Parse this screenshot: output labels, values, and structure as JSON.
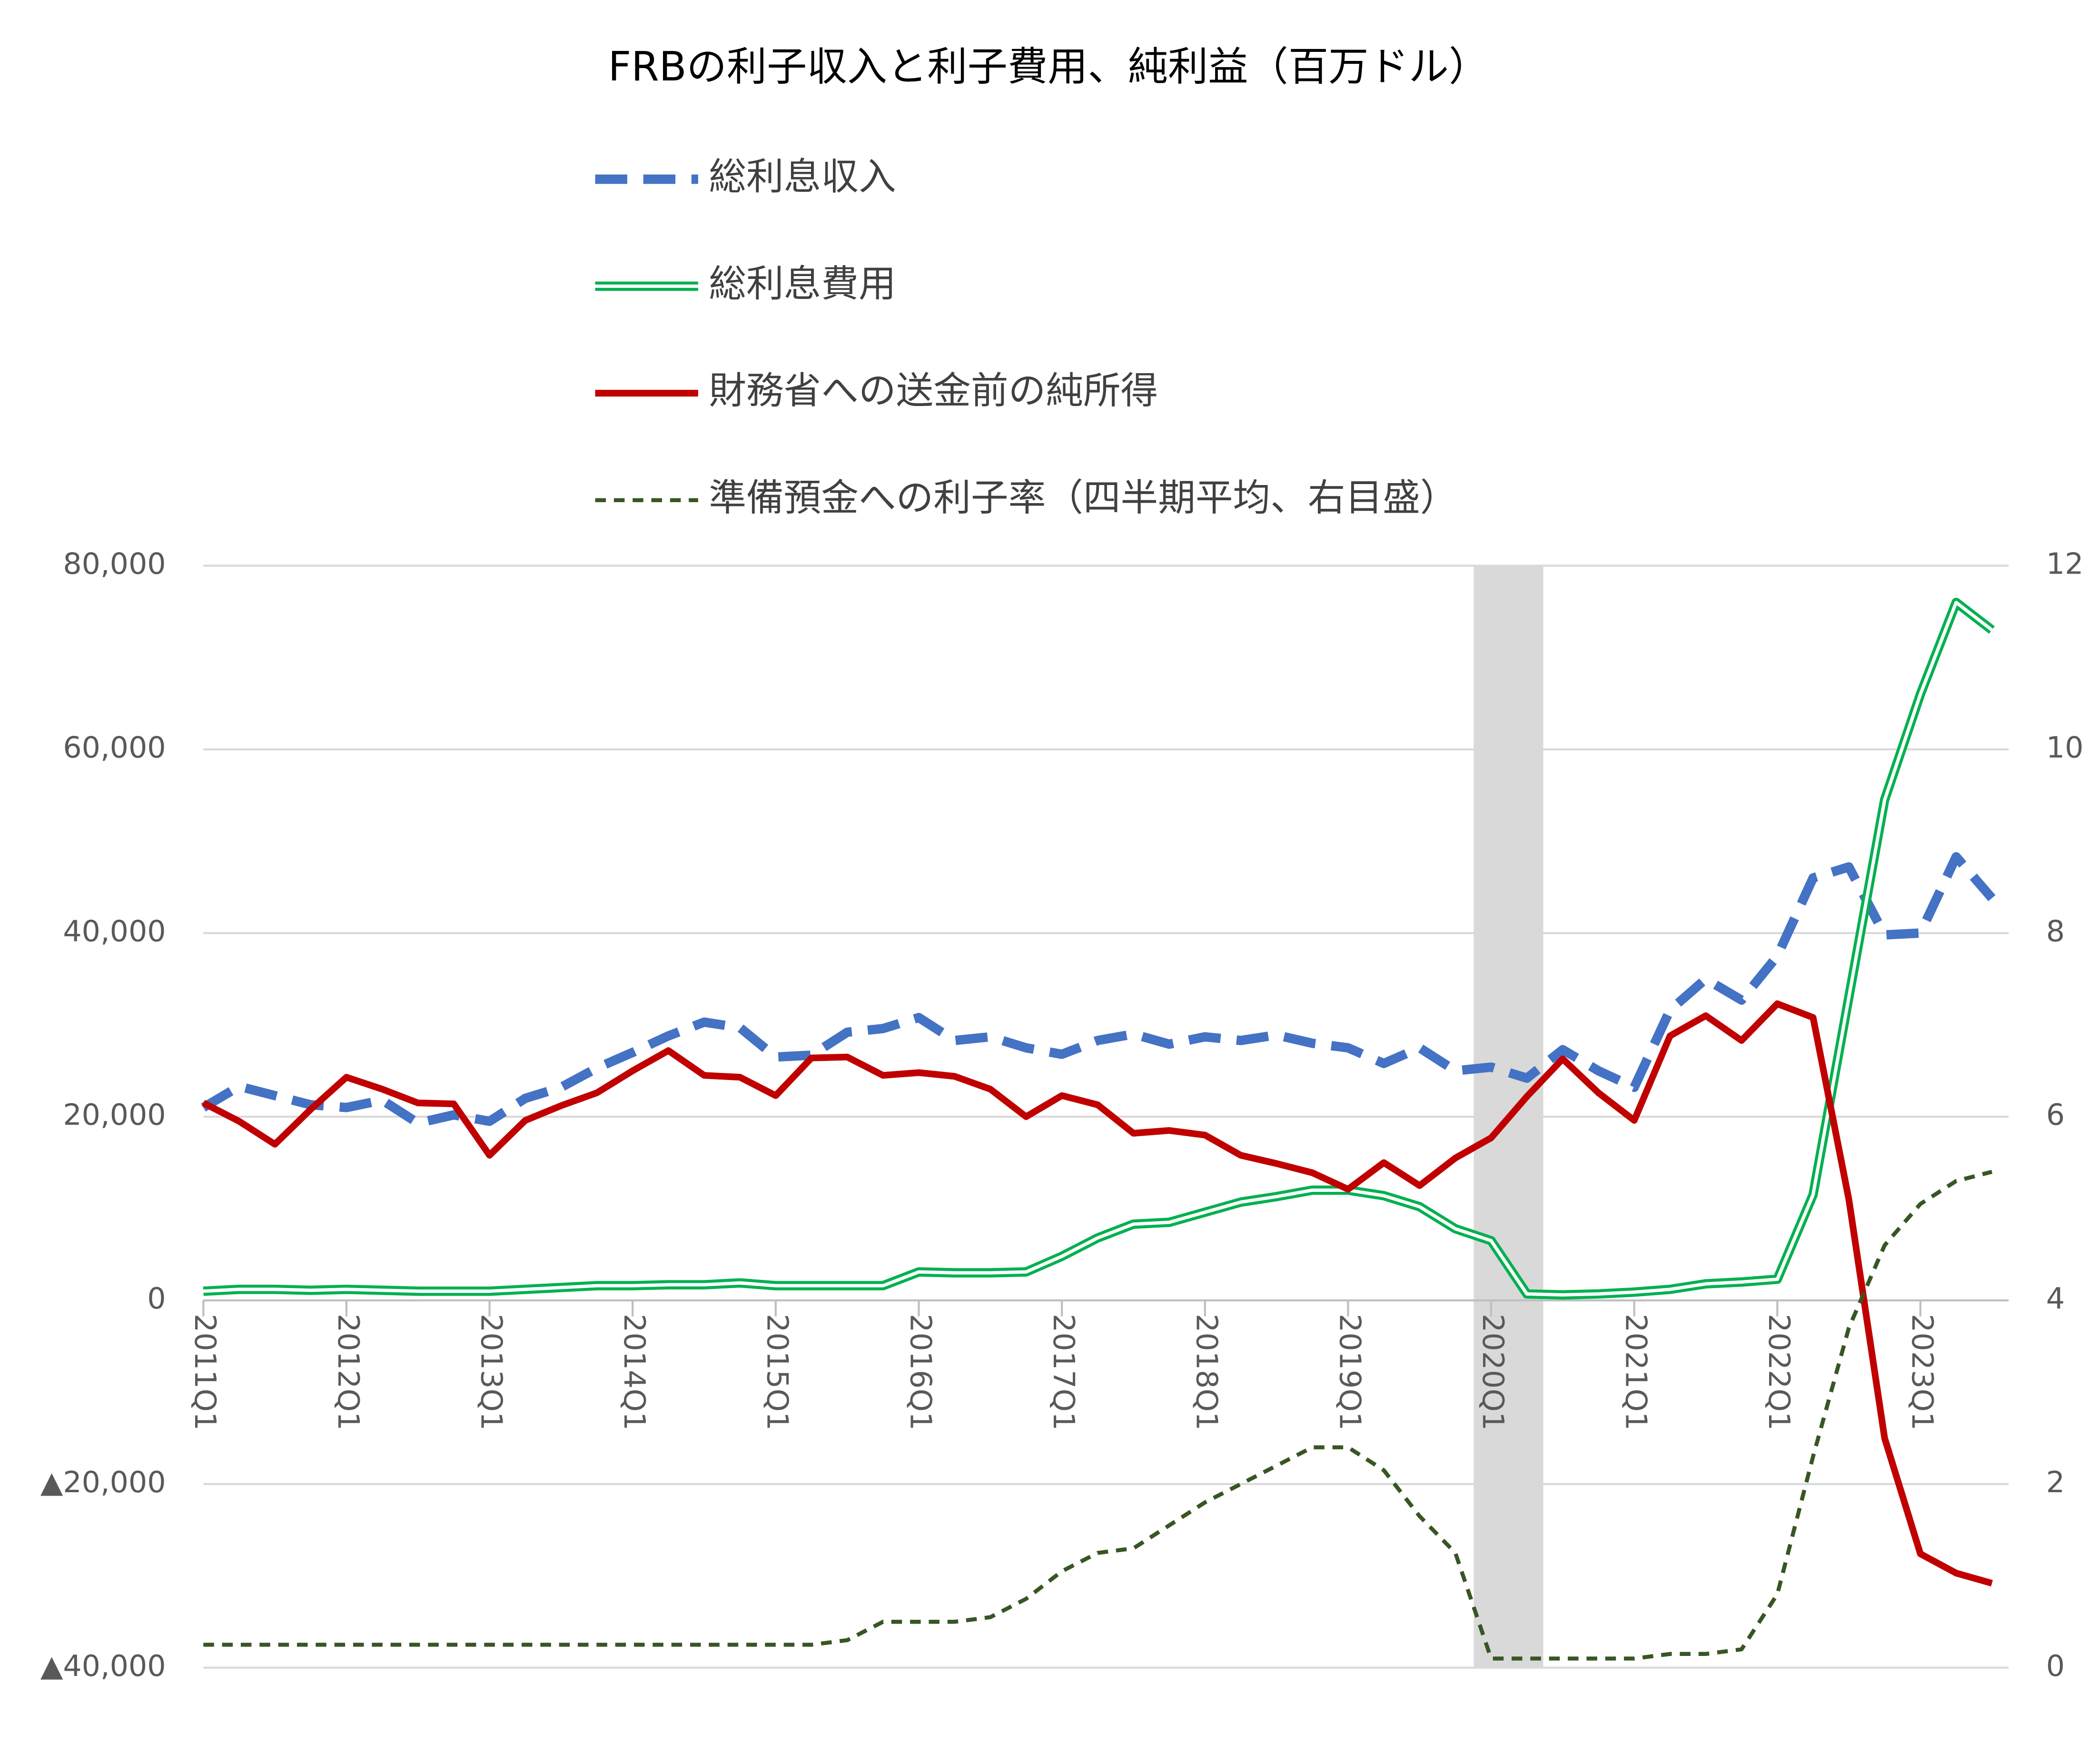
{
  "chart_data": {
    "type": "line",
    "title": "FRBの利子収入と利子費用、純利益（百万ドル）",
    "legend": "top",
    "grid": true,
    "categories": [
      "2011Q1",
      null,
      null,
      null,
      "2012Q1",
      null,
      null,
      null,
      "2013Q1",
      null,
      null,
      null,
      "2014Q1",
      null,
      null,
      null,
      "2015Q1",
      null,
      null,
      null,
      "2016Q1",
      null,
      null,
      null,
      "2017Q1",
      null,
      null,
      null,
      "2018Q1",
      null,
      null,
      null,
      "2019Q1",
      null,
      null,
      null,
      "2020Q1",
      null,
      null,
      null,
      "2021Q1",
      null,
      null,
      null,
      "2022Q1",
      null,
      null,
      null,
      "2023Q1",
      null,
      null
    ],
    "ylim": [
      -40000,
      80000
    ],
    "yticks": [
      {
        "value": -40000,
        "label": "▲40,000"
      },
      {
        "value": -20000,
        "label": "▲20,000"
      },
      0,
      {
        "value": 20000,
        "label": "20,000"
      },
      {
        "value": 40000,
        "label": "40,000"
      },
      {
        "value": 60000,
        "label": "60,000"
      },
      {
        "value": 80000,
        "label": "80,000"
      }
    ],
    "y2lim": [
      0,
      12
    ],
    "y2ticks": [
      0,
      2,
      4,
      6,
      8,
      10,
      12
    ],
    "series": [
      {
        "name": "総利息収入",
        "color": "#4472c4",
        "style": "dashed",
        "values": [
          21000,
          23300,
          22300,
          21300,
          21000,
          21800,
          19300,
          20200,
          19500,
          22000,
          23200,
          25300,
          27000,
          28800,
          30300,
          29700,
          26500,
          26700,
          29200,
          29600,
          30800,
          28300,
          28700,
          27500,
          26800,
          28300,
          29000,
          27900,
          28700,
          28300,
          28900,
          28000,
          27500,
          25800,
          27500,
          25000,
          25400,
          24200,
          27300,
          25000,
          23200,
          31600,
          35000,
          32700,
          37500,
          46000,
          47200,
          39800,
          40000,
          48300,
          43800
        ]
      },
      {
        "name": "総利息費用",
        "color": "#00b050",
        "style": "double",
        "values": [
          1000,
          1200,
          1200,
          1100,
          1200,
          1100,
          1000,
          1000,
          1000,
          1200,
          1400,
          1600,
          1600,
          1700,
          1700,
          1900,
          1600,
          1600,
          1600,
          1600,
          3100,
          3000,
          3000,
          3100,
          4800,
          6800,
          8300,
          8500,
          9600,
          10700,
          11300,
          12000,
          12000,
          11400,
          10200,
          7800,
          6500,
          700,
          600,
          700,
          900,
          1200,
          1800,
          2000,
          2300,
          11500,
          33000,
          54500,
          66000,
          76000,
          73000
        ]
      },
      {
        "name": "財務省への送金前の純所得",
        "color": "#c00000",
        "style": "solid",
        "values": [
          21500,
          19500,
          17000,
          20800,
          24300,
          23000,
          21500,
          21400,
          15800,
          19600,
          21200,
          22600,
          25000,
          27200,
          24500,
          24300,
          22300,
          26400,
          26500,
          24500,
          24800,
          24400,
          23000,
          20000,
          22300,
          21300,
          18200,
          18500,
          18000,
          15800,
          14900,
          13900,
          12100,
          15000,
          12500,
          15500,
          17700,
          22200,
          26300,
          22600,
          19600,
          28800,
          31000,
          28300,
          32300,
          30800,
          11000,
          -15000,
          -27600,
          -29700,
          -30800
        ]
      },
      {
        "name": "準備預金への利子率（四半期平均、右目盛）",
        "color": "#375623",
        "style": "dotted",
        "axis": "y2",
        "values": [
          0.25,
          0.25,
          0.25,
          0.25,
          0.25,
          0.25,
          0.25,
          0.25,
          0.25,
          0.25,
          0.25,
          0.25,
          0.25,
          0.25,
          0.25,
          0.25,
          0.25,
          0.25,
          0.3,
          0.5,
          0.5,
          0.5,
          0.55,
          0.75,
          1.05,
          1.25,
          1.3,
          1.55,
          1.8,
          2.0,
          2.2,
          2.4,
          2.4,
          2.15,
          1.65,
          1.25,
          0.1,
          0.1,
          0.1,
          0.1,
          0.1,
          0.15,
          0.15,
          0.2,
          0.8,
          2.3,
          3.7,
          4.6,
          5.05,
          5.3,
          5.4
        ]
      }
    ]
  }
}
